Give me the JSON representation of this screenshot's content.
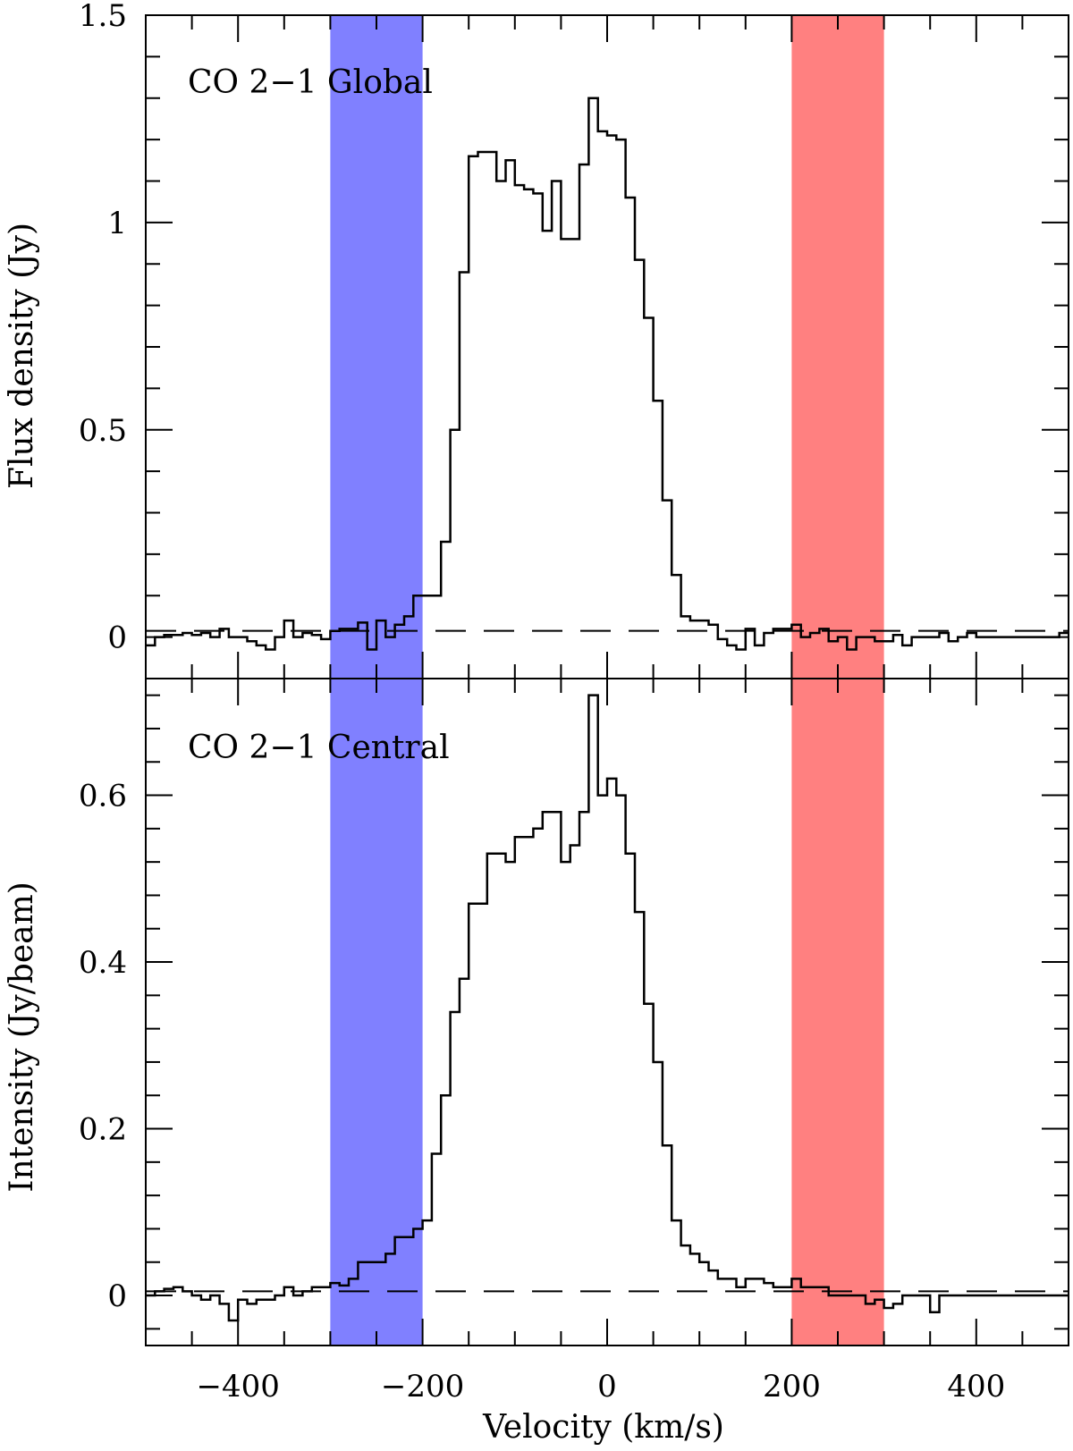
{
  "chart_data": [
    {
      "type": "line",
      "panel": "top",
      "label": "CO 2−1 Global",
      "ylabel": "Flux density (Jy)",
      "xlim": [
        -500,
        500
      ],
      "ylim": [
        -0.1,
        1.5
      ],
      "yticks": [
        0,
        0.5,
        1,
        1.5
      ],
      "yticklabels": [
        "0",
        "0.5",
        "1",
        "1.5"
      ],
      "step_width": 10,
      "baseline": 0.015,
      "x": [
        -500,
        -490,
        -480,
        -470,
        -460,
        -450,
        -440,
        -430,
        -420,
        -410,
        -400,
        -390,
        -380,
        -370,
        -360,
        -350,
        -340,
        -330,
        -320,
        -310,
        -300,
        -290,
        -280,
        -270,
        -260,
        -250,
        -240,
        -230,
        -220,
        -210,
        -200,
        -190,
        -180,
        -170,
        -160,
        -150,
        -140,
        -130,
        -120,
        -110,
        -100,
        -90,
        -80,
        -70,
        -60,
        -50,
        -40,
        -30,
        -20,
        -10,
        0,
        10,
        20,
        30,
        40,
        50,
        60,
        70,
        80,
        90,
        100,
        110,
        120,
        130,
        140,
        150,
        160,
        170,
        180,
        190,
        200,
        210,
        220,
        230,
        240,
        250,
        260,
        270,
        280,
        290,
        300,
        310,
        320,
        330,
        340,
        350,
        360,
        370,
        380,
        390,
        400,
        410,
        420,
        430,
        440,
        450,
        460,
        470,
        480,
        490
      ],
      "values": [
        -0.02,
        0.0,
        0.005,
        0.005,
        0.01,
        0.005,
        0.01,
        0.0,
        0.02,
        0.0,
        0.0,
        -0.01,
        -0.02,
        -0.03,
        0.0,
        0.04,
        0.0,
        0.01,
        0.005,
        -0.005,
        0.015,
        0.02,
        0.02,
        0.035,
        -0.03,
        0.04,
        0.0,
        0.03,
        0.05,
        0.1,
        0.1,
        0.1,
        0.23,
        0.5,
        0.88,
        1.16,
        1.17,
        1.17,
        1.1,
        1.15,
        1.09,
        1.08,
        1.07,
        0.98,
        1.1,
        0.96,
        0.96,
        1.14,
        1.3,
        1.22,
        1.21,
        1.2,
        1.06,
        0.91,
        0.77,
        0.57,
        0.33,
        0.15,
        0.05,
        0.04,
        0.04,
        0.03,
        -0.005,
        -0.02,
        -0.03,
        0.02,
        -0.02,
        0.01,
        0.02,
        0.02,
        0.03,
        0.0,
        0.01,
        0.02,
        -0.01,
        0.0,
        -0.03,
        0.0,
        0.0,
        -0.01,
        -0.01,
        0.005,
        -0.02,
        0.0,
        0.0,
        0.0,
        0.01,
        -0.01,
        0.0,
        0.01,
        0.0,
        0.0,
        0.0,
        0.0,
        0.0,
        0.0,
        0.0,
        0.0,
        0.0,
        0.01
      ]
    },
    {
      "type": "line",
      "panel": "bottom",
      "label": "CO 2−1 Central",
      "ylabel": "Intensity (Jy/beam)",
      "xlabel": "Velocity (km/s)",
      "xlim": [
        -500,
        500
      ],
      "ylim": [
        -0.06,
        0.74
      ],
      "yticks": [
        0,
        0.2,
        0.4,
        0.6
      ],
      "yticklabels": [
        "0",
        "0.2",
        "0.4",
        "0.6"
      ],
      "xticks": [
        -400,
        -200,
        0,
        200,
        400
      ],
      "xticklabels": [
        "−400",
        "−200",
        "0",
        "200",
        "400"
      ],
      "step_width": 10,
      "baseline": 0.005,
      "x": [
        -500,
        -490,
        -480,
        -470,
        -460,
        -450,
        -440,
        -430,
        -420,
        -410,
        -400,
        -390,
        -380,
        -370,
        -360,
        -350,
        -340,
        -330,
        -320,
        -310,
        -300,
        -290,
        -280,
        -270,
        -260,
        -250,
        -240,
        -230,
        -220,
        -210,
        -200,
        -190,
        -180,
        -170,
        -160,
        -150,
        -140,
        -130,
        -120,
        -110,
        -100,
        -90,
        -80,
        -70,
        -60,
        -50,
        -40,
        -30,
        -20,
        -10,
        0,
        10,
        20,
        30,
        40,
        50,
        60,
        70,
        80,
        90,
        100,
        110,
        120,
        130,
        140,
        150,
        160,
        170,
        180,
        190,
        200,
        210,
        220,
        230,
        240,
        250,
        260,
        270,
        280,
        290,
        300,
        310,
        320,
        330,
        340,
        350,
        360,
        370,
        380,
        390,
        400,
        410,
        420,
        430,
        440,
        450,
        460,
        470,
        480,
        490
      ],
      "values": [
        0.0,
        0.005,
        0.008,
        0.01,
        0.005,
        0.0,
        -0.005,
        0.0,
        -0.01,
        -0.03,
        -0.005,
        -0.01,
        -0.005,
        -0.005,
        0.0,
        0.01,
        0.0,
        0.005,
        0.01,
        0.01,
        0.015,
        0.012,
        0.02,
        0.04,
        0.04,
        0.04,
        0.05,
        0.07,
        0.07,
        0.08,
        0.09,
        0.17,
        0.24,
        0.34,
        0.38,
        0.47,
        0.47,
        0.53,
        0.53,
        0.52,
        0.55,
        0.55,
        0.56,
        0.58,
        0.58,
        0.52,
        0.54,
        0.58,
        0.72,
        0.6,
        0.62,
        0.6,
        0.53,
        0.46,
        0.35,
        0.28,
        0.18,
        0.09,
        0.06,
        0.05,
        0.04,
        0.03,
        0.02,
        0.02,
        0.01,
        0.02,
        0.02,
        0.015,
        0.01,
        0.01,
        0.02,
        0.01,
        0.01,
        0.01,
        0.0,
        0.0,
        0.0,
        0.0,
        -0.01,
        -0.005,
        -0.015,
        -0.01,
        0.0,
        0.0,
        0.0,
        -0.02,
        0.0,
        0.0,
        0.0,
        0.0,
        0.0,
        0.0,
        0.0,
        0.0,
        0.0,
        0.0,
        0.0,
        0.0,
        0.0,
        0.0
      ]
    }
  ],
  "bands": [
    {
      "name": "blue",
      "xmin": -300,
      "xmax": -200,
      "color": "#8080ff"
    },
    {
      "name": "red",
      "xmin": 200,
      "xmax": 300,
      "color": "#ff8080"
    }
  ],
  "colors": {
    "line": "#000000",
    "background": "#ffffff"
  }
}
